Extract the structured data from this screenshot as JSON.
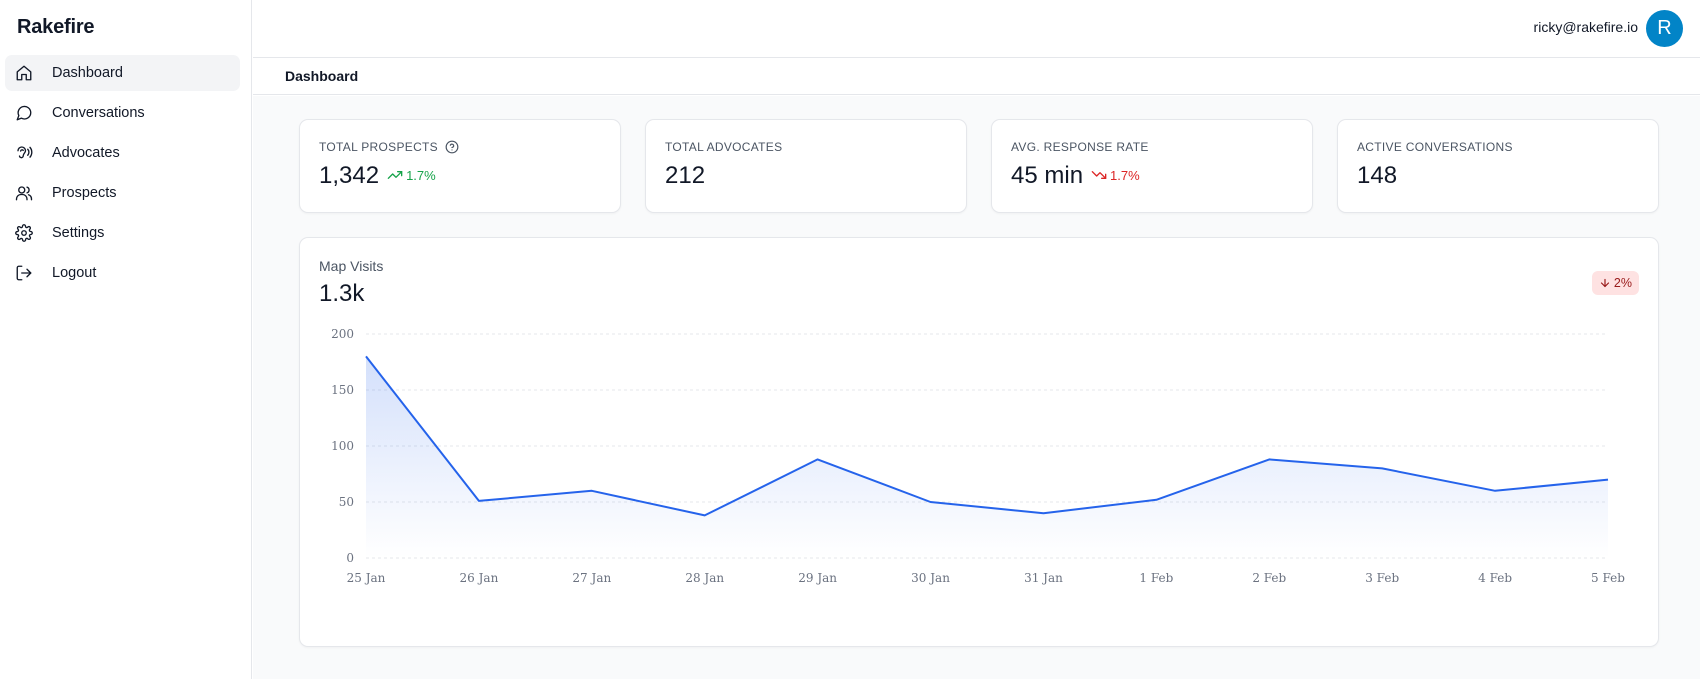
{
  "app": {
    "brand": "Rakefire"
  },
  "sidebar": {
    "items": [
      {
        "label": "Dashboard",
        "icon": "home-icon",
        "active": true
      },
      {
        "label": "Conversations",
        "icon": "message-circle-icon",
        "active": false
      },
      {
        "label": "Advocates",
        "icon": "ear-icon",
        "active": false
      },
      {
        "label": "Prospects",
        "icon": "users-icon",
        "active": false
      },
      {
        "label": "Settings",
        "icon": "gear-icon",
        "active": false
      },
      {
        "label": "Logout",
        "icon": "logout-icon",
        "active": false
      }
    ]
  },
  "header": {
    "user_email": "ricky@rakefire.io",
    "avatar_initial": "R",
    "avatar_color": "#0284c7"
  },
  "page": {
    "title": "Dashboard"
  },
  "stats": [
    {
      "label": "TOTAL PROSPECTS",
      "value": "1,342",
      "trend": "1.7%",
      "trend_direction": "up",
      "help": true
    },
    {
      "label": "TOTAL ADVOCATES",
      "value": "212"
    },
    {
      "label": "AVG. RESPONSE RATE",
      "value": "45 min",
      "trend": "1.7%",
      "trend_direction": "down"
    },
    {
      "label": "ACTIVE CONVERSATIONS",
      "value": "148"
    }
  ],
  "colors": {
    "accent": "#2563eb",
    "trend_up": "#16a34a",
    "trend_down": "#dc2626",
    "badge_bg": "#fee2e2"
  },
  "chart_card": {
    "title": "Map Visits",
    "value": "1.3k",
    "badge": "2%",
    "badge_direction": "down"
  },
  "chart_data": {
    "type": "area",
    "title": "Map Visits",
    "x": [
      "25 Jan",
      "26 Jan",
      "27 Jan",
      "28 Jan",
      "29 Jan",
      "30 Jan",
      "31 Jan",
      "1 Feb",
      "2 Feb",
      "3 Feb",
      "4 Feb",
      "5 Feb"
    ],
    "series": [
      {
        "values": [
          180,
          51,
          60,
          38,
          88,
          50,
          40,
          52,
          88,
          80,
          60,
          70
        ]
      }
    ],
    "yticks": [
      0,
      50,
      100,
      150,
      200
    ],
    "ylim": [
      0,
      200
    ],
    "grid": true
  }
}
